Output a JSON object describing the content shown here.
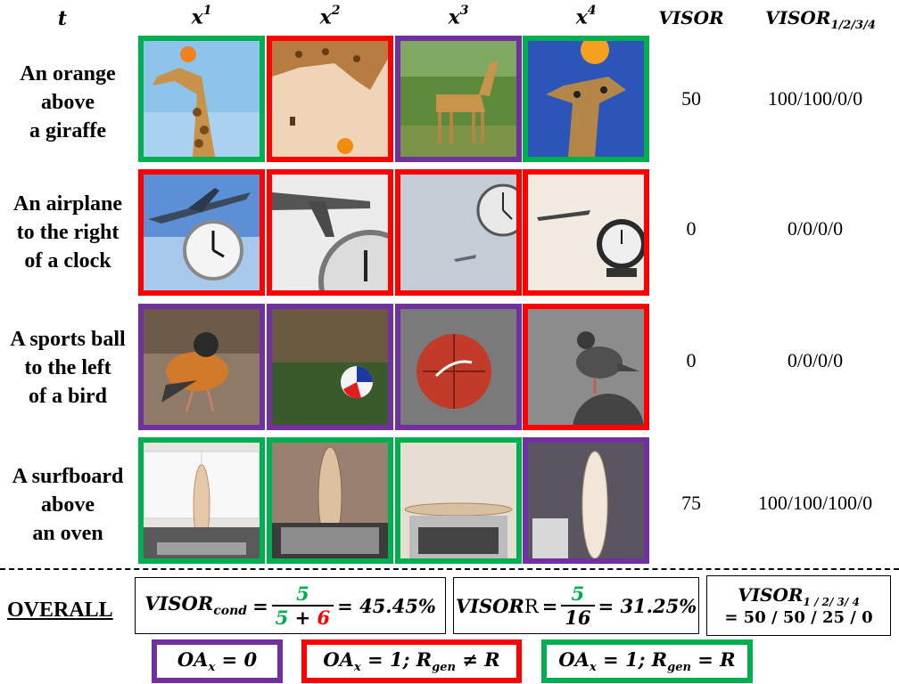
{
  "header": {
    "t": "t",
    "x1": "x",
    "x1_sup": "1",
    "x2": "x",
    "x2_sup": "2",
    "x3": "x",
    "x3_sup": "3",
    "x4": "x",
    "x4_sup": "4",
    "visor": "VISOR",
    "visor_n": "VISOR",
    "visor_n_sub": "1/2/3/4"
  },
  "rows": [
    {
      "prompt": [
        "An orange",
        "above",
        "a giraffe"
      ],
      "visor": "50",
      "visor_n": "100/100/0/0",
      "cells": [
        "green",
        "red",
        "purple",
        "green"
      ]
    },
    {
      "prompt": [
        "An airplane",
        "to the right",
        "of a clock"
      ],
      "visor": "0",
      "visor_n": "0/0/0/0",
      "cells": [
        "red",
        "red",
        "red",
        "red"
      ]
    },
    {
      "prompt": [
        "A sports ball",
        "to the left",
        "of a bird"
      ],
      "visor": "0",
      "visor_n": "0/0/0/0",
      "cells": [
        "purple",
        "purple",
        "purple",
        "red"
      ]
    },
    {
      "prompt": [
        "A surfboard",
        "above",
        "an oven"
      ],
      "visor": "75",
      "visor_n": "100/100/100/0",
      "cells": [
        "green",
        "green",
        "green",
        "purple"
      ]
    }
  ],
  "overall": {
    "label": "OVERALL",
    "cond_lhs": "VISOR",
    "cond_sub": "cond",
    "cond_num": "5",
    "cond_den_a": "5",
    "cond_plus": "+",
    "cond_den_b": "6",
    "cond_result": "= 45.45%",
    "eq": "=",
    "visor_lhs": "VISOR",
    "visor_r": "R",
    "visor_num": "5",
    "visor_den": "16",
    "visor_result": "= 31.25%",
    "n_lhs": "VISOR",
    "n_sub": "1 / 2/ 3/ 4",
    "n_result": "= 50 / 50 / 25 / 0"
  },
  "legend": [
    {
      "color": "purple",
      "text": "OA",
      "sub": "x",
      "rest": " = 0"
    },
    {
      "color": "red",
      "text": "OA",
      "sub": "x",
      "rest": " = 1; ",
      "r": "R",
      "rsub": "gen",
      "rest2": " ≠ R"
    },
    {
      "color": "green",
      "text": "OA",
      "sub": "x",
      "rest": " = 1;  ",
      "r": "R",
      "rsub": "gen",
      "rest2": " = R"
    }
  ],
  "colors": {
    "purple": "#7030a0",
    "red": "#ff0000",
    "green": "#00b050"
  }
}
